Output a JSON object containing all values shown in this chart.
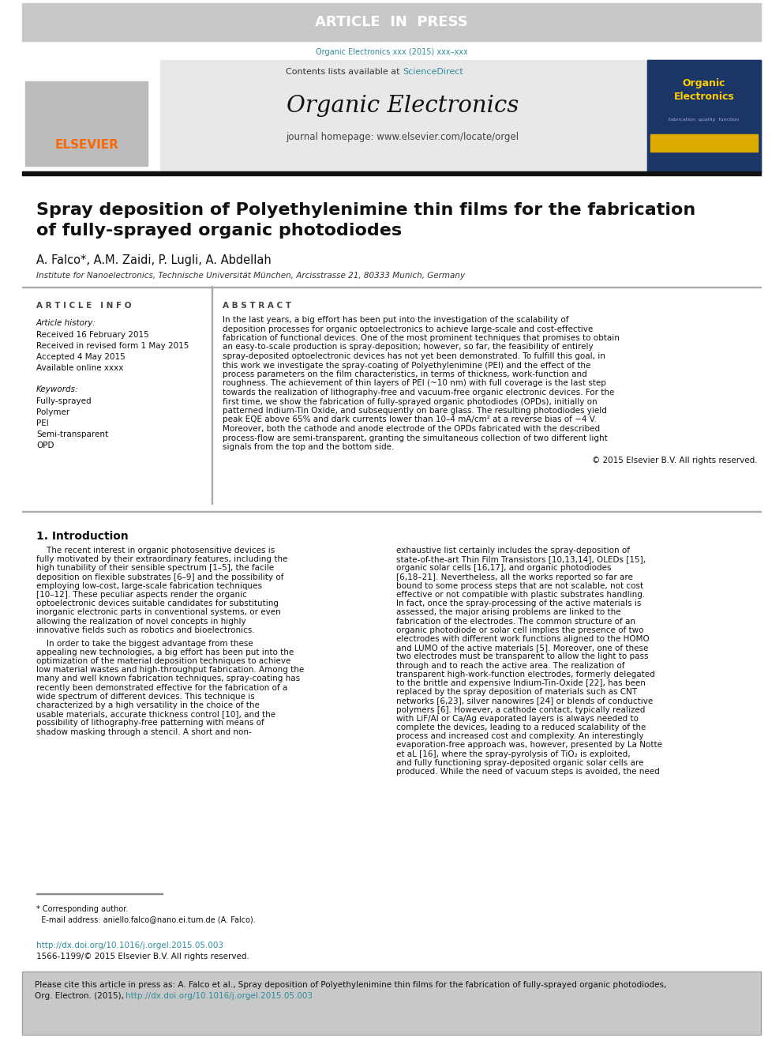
{
  "article_in_press_text": "ARTICLE  IN  PRESS",
  "article_in_press_bg": "#c8c8c8",
  "article_in_press_fg": "#ffffff",
  "journal_ref": "Organic Electronics xxx (2015) xxx–xxx",
  "journal_ref_color": "#2e8b9a",
  "contents_text": "Contents lists available at ",
  "sciencedirect_text": "ScienceDirect",
  "sciencedirect_color": "#2e8b9a",
  "journal_name": "Organic Electronics",
  "journal_homepage": "journal homepage: www.elsevier.com/locate/orgel",
  "elsevier_color": "#ff6600",
  "title": "Spray deposition of Polyethylenimine thin films for the fabrication\nof fully-sprayed organic photodiodes",
  "authors": "A. Falco*, A.M. Zaidi, P. Lugli, A. Abdellah",
  "affiliation": "Institute for Nanoelectronics, Technische Universität München, Arcisstrasse 21, 80333 Munich, Germany",
  "article_info_title": "A R T I C L E   I N F O",
  "abstract_title": "A B S T R A C T",
  "article_history_label": "Article history:",
  "received_text": "Received 16 February 2015",
  "revised_text": "Received in revised form 1 May 2015",
  "accepted_text": "Accepted 4 May 2015",
  "online_text": "Available online xxxx",
  "keywords_label": "Keywords:",
  "keywords": [
    "Fully-sprayed",
    "Polymer",
    "PEI",
    "Semi-transparent",
    "OPD"
  ],
  "abstract_text": "In the last years, a big effort has been put into the investigation of the scalability of deposition processes for organic optoelectronics to achieve large-scale and cost-effective fabrication of functional devices. One of the most prominent techniques that promises to obtain an easy-to-scale production is spray-deposition; however, so far, the feasibility of entirely spray-deposited optoelectronic devices has not yet been demonstrated. To fulfill this goal, in this work we investigate the spray-coating of Polyethylenimine (PEI) and the effect of the process parameters on the film characteristics, in terms of thickness, work-function and roughness. The achievement of thin layers of PEI (~10 nm) with full coverage is the last step towards the realization of lithography-free and vacuum-free organic electronic devices. For the first time, we show the fabrication of fully-sprayed organic photodiodes (OPDs), initially on patterned Indium-Tin Oxide, and subsequently on bare glass. The resulting photodiodes yield peak EQE above 65% and dark currents lower than 10–4 mA/cm² at a reverse bias of −4 V. Moreover, both the cathode and anode electrode of the OPDs fabricated with the described process-flow are semi-transparent, granting the simultaneous collection of two different light signals from the top and the bottom side.",
  "copyright_text": "© 2015 Elsevier B.V. All rights reserved.",
  "section1_title": "1. Introduction",
  "intro_col1_p1": "    The recent interest in organic photosensitive devices is fully motivated by their extraordinary features, including the high tunability of their sensible spectrum [1–5], the facile deposition on flexible substrates [6–9] and the possibility of employing low-cost, large-scale fabrication techniques [10–12]. These peculiar aspects render the organic optoelectronic devices suitable candidates for substituting inorganic electronic parts in conventional systems, or even allowing the realization of novel concepts in highly innovative fields such as robotics and bioelectronics.",
  "intro_col1_p2": "    In order to take the biggest advantage from these appealing new technologies, a big effort has been put into the optimization of the material deposition techniques to achieve low material wastes and high-throughput fabrication. Among the many and well known fabrication techniques, spray-coating has recently been demonstrated effective for the fabrication of a wide spectrum of different devices. This technique is characterized by a high versatility in the choice of the usable materials, accurate thickness control [10], and the possibility of lithography-free patterning with means of shadow masking through a stencil. A short and non-",
  "intro_col2": "exhaustive list certainly includes the spray-deposition of state-of-the-art Thin Film Transistors [10,13,14], OLEDs [15], organic solar cells [16,17], and organic photodiodes [6,18–21]. Nevertheless, all the works reported so far are bound to some process steps that are not scalable, not cost effective or not compatible with plastic substrates handling. In fact, once the spray-processing of the active materials is assessed, the major arising problems are linked to the fabrication of the electrodes. The common structure of an organic photodiode or solar cell implies the presence of two electrodes with different work functions aligned to the HOMO and LUMO of the active materials [5]. Moreover, one of these two electrodes must be transparent to allow the light to pass through and to reach the active area. The realization of transparent high-work-function electrodes, formerly delegated to the brittle and expensive Indium-Tin-Oxide [22], has been replaced by the spray deposition of materials such as CNT networks [6,23], silver nanowires [24] or blends of conductive polymers [6]. However, a cathode contact, typically realized with LiF/Al or Ca/Ag evaporated layers is always needed to complete the devices, leading to a reduced scalability of the process and increased cost and complexity. An interestingly evaporation-free approach was, however, presented by La Notte et aL [16], where the spray-pyrolysis of TiO₂ is exploited, and fully functioning spray-deposited organic solar cells are produced. While the need of vacuum steps is avoided, the need",
  "corresponding_note1": "* Corresponding author.",
  "corresponding_note2": "  E-mail address: aniello.falco@nano.ei.tum.de (A. Falco).",
  "doi_text": "http://dx.doi.org/10.1016/j.orgel.2015.05.003",
  "doi_color": "#2e8b9a",
  "issn_text": "1566-1199/© 2015 Elsevier B.V. All rights reserved.",
  "cite_line1": "Please cite this article in press as: A. Falco et al., Spray deposition of Polyethylenimine thin films for the fabrication of fully-sprayed organic photodiodes,",
  "cite_line2": "Org. Electron. (2015), ",
  "cite_doi": "http://dx.doi.org/10.1016/j.orgel.2015.05.003",
  "cite_box_bg": "#c8c8c8",
  "cite_doi_color": "#2e8b9a",
  "page_bg": "#ffffff"
}
